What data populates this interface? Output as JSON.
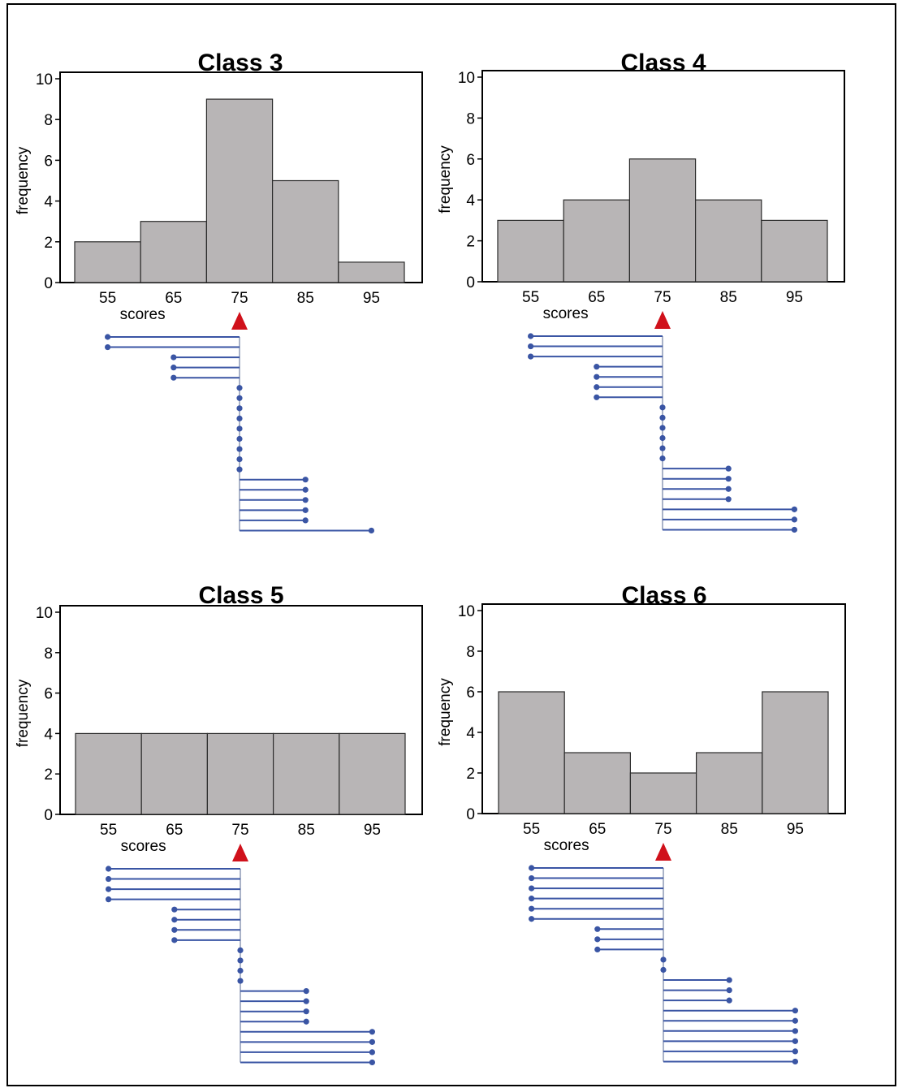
{
  "colors": {
    "bar_fill": "#b8b5b6",
    "bar_stroke": "#2b2b2b",
    "deviation_line": "#3a55a4",
    "marker": "#d0111b",
    "stem": "#aab3c8"
  },
  "chart_data": [
    {
      "type": "bar",
      "title": "Class 3",
      "categories": [
        "55",
        "65",
        "75",
        "85",
        "95"
      ],
      "values": [
        2,
        3,
        9,
        5,
        1
      ],
      "xlabel": "scores",
      "ylabel": "frequency",
      "ylim": [
        0,
        10
      ],
      "yticks": [
        "0",
        "2",
        "4",
        "6",
        "8",
        "10"
      ],
      "mean_marker": "75"
    },
    {
      "type": "bar",
      "title": "Class 4",
      "categories": [
        "55",
        "65",
        "75",
        "85",
        "95"
      ],
      "values": [
        3,
        4,
        6,
        4,
        3
      ],
      "xlabel": "scores",
      "ylabel": "frequency",
      "ylim": [
        0,
        10
      ],
      "yticks": [
        "0",
        "2",
        "4",
        "6",
        "8",
        "10"
      ],
      "mean_marker": "75"
    },
    {
      "type": "bar",
      "title": "Class 5",
      "categories": [
        "55",
        "65",
        "75",
        "85",
        "95"
      ],
      "values": [
        4,
        4,
        4,
        4,
        4
      ],
      "xlabel": "scores",
      "ylabel": "frequency",
      "ylim": [
        0,
        10
      ],
      "yticks": [
        "0",
        "2",
        "4",
        "6",
        "8",
        "10"
      ],
      "mean_marker": "75"
    },
    {
      "type": "bar",
      "title": "Class 6",
      "categories": [
        "55",
        "65",
        "75",
        "85",
        "95"
      ],
      "values": [
        6,
        3,
        2,
        3,
        6
      ],
      "xlabel": "scores",
      "ylabel": "frequency",
      "ylim": [
        0,
        10
      ],
      "yticks": [
        "0",
        "2",
        "4",
        "6",
        "8",
        "10"
      ],
      "mean_marker": "75"
    }
  ]
}
